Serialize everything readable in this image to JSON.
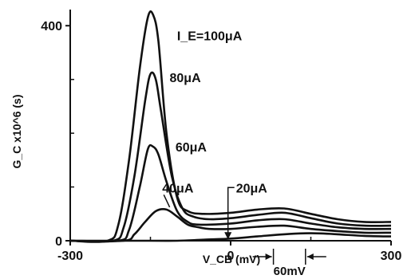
{
  "chart_data": {
    "type": "line",
    "title": "",
    "xlabel": "V_CB (mV)",
    "ylabel": "G_C x10^6 (s)",
    "xlim": [
      -300,
      300
    ],
    "ylim": [
      0,
      430
    ],
    "x_ticks": [
      -300,
      0,
      300
    ],
    "x_tick_labels": [
      "-300",
      "0",
      "300"
    ],
    "y_ticks": [
      0,
      400
    ],
    "y_tick_labels": [
      "0",
      "400"
    ],
    "grid": false,
    "legend": "none",
    "series": [
      {
        "name": "I_E=100μA",
        "x": [
          -300,
          -230,
          -210,
          -190,
          -170,
          -155,
          -145,
          -135,
          -120,
          -100,
          -80,
          -50,
          0,
          50,
          100,
          150,
          200,
          250,
          300
        ],
        "y": [
          0,
          0,
          30,
          150,
          320,
          415,
          420,
          370,
          200,
          80,
          55,
          50,
          52,
          58,
          60,
          50,
          40,
          35,
          35
        ]
      },
      {
        "name": "80μA",
        "x": [
          -300,
          -220,
          -200,
          -180,
          -160,
          -150,
          -140,
          -130,
          -110,
          -90,
          -70,
          -40,
          0,
          50,
          100,
          150,
          200,
          250,
          300
        ],
        "y": [
          0,
          0,
          25,
          120,
          260,
          310,
          300,
          240,
          120,
          60,
          45,
          40,
          42,
          48,
          52,
          42,
          32,
          28,
          28
        ]
      },
      {
        "name": "60μA",
        "x": [
          -300,
          -210,
          -190,
          -170,
          -155,
          -145,
          -135,
          -120,
          -100,
          -80,
          -60,
          0,
          50,
          100,
          150,
          200,
          250,
          300
        ],
        "y": [
          0,
          0,
          20,
          100,
          170,
          175,
          160,
          110,
          55,
          35,
          30,
          32,
          38,
          40,
          32,
          25,
          22,
          22
        ]
      },
      {
        "name": "40μA",
        "x": [
          -300,
          -200,
          -180,
          -160,
          -140,
          -120,
          -100,
          -80,
          -60,
          -40,
          0,
          50,
          100,
          150,
          200,
          250,
          300
        ],
        "y": [
          0,
          0,
          12,
          35,
          55,
          58,
          45,
          30,
          25,
          22,
          22,
          26,
          28,
          22,
          18,
          15,
          15
        ]
      },
      {
        "name": "20μA",
        "x": [
          -300,
          -150,
          -100,
          -50,
          0,
          50,
          100,
          150,
          200,
          250,
          300
        ],
        "y": [
          0,
          0,
          0,
          2,
          4,
          8,
          12,
          14,
          12,
          9,
          8
        ]
      }
    ],
    "annotations": {
      "interval_label": "60mV",
      "interval_x": [
        80,
        140
      ]
    }
  }
}
